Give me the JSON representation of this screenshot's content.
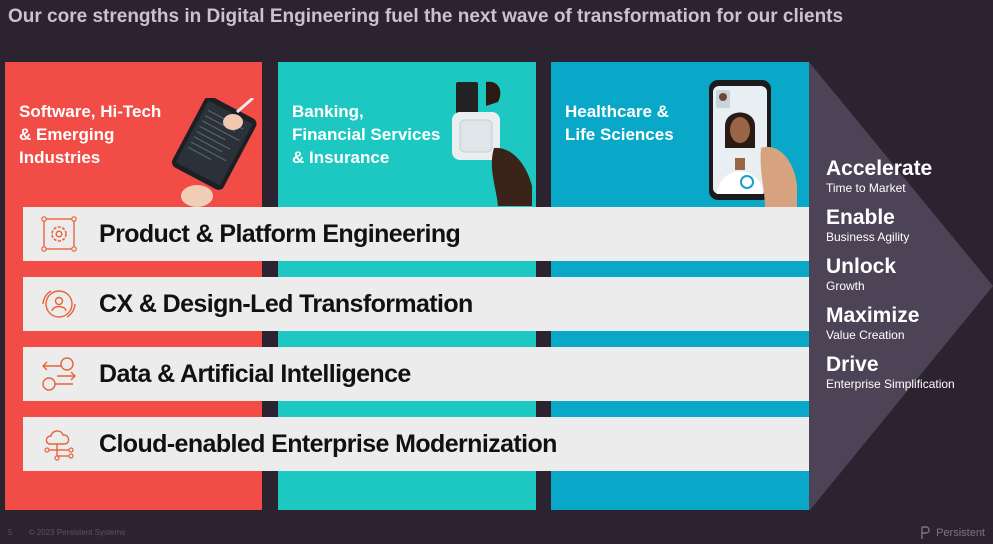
{
  "header": {
    "title": "Our core strengths in Digital Engineering fuel the next wave of transformation for our clients"
  },
  "industries": [
    {
      "lines": [
        "Software, Hi-Tech",
        "& Emerging",
        "Industries"
      ],
      "color": "#f24c46"
    },
    {
      "lines": [
        "Banking,",
        "Financial Services",
        "& Insurance"
      ],
      "color": "#1ec8c2"
    },
    {
      "lines": [
        "Healthcare &",
        "Life Sciences"
      ],
      "color": "#0aa8c8"
    }
  ],
  "capabilities": [
    {
      "label": "Product & Platform Engineering",
      "icon": "gear-icon"
    },
    {
      "label": "CX & Design-Led Transformation",
      "icon": "user-circle-icon"
    },
    {
      "label": "Data & Artificial Intelligence",
      "icon": "data-flow-icon"
    },
    {
      "label": "Cloud-enabled Enterprise Modernization",
      "icon": "cloud-network-icon"
    }
  ],
  "outcomes": [
    {
      "head": "Accelerate",
      "sub": "Time to Market"
    },
    {
      "head": "Enable",
      "sub": "Business Agility"
    },
    {
      "head": "Unlock",
      "sub": "Growth"
    },
    {
      "head": "Maximize",
      "sub": "Value Creation"
    },
    {
      "head": "Drive",
      "sub": "Enterprise Simplification"
    }
  ],
  "footer": {
    "page_number": "5",
    "copyright": "© 2023 Persistent Systems",
    "brand": "Persistent"
  },
  "colors": {
    "background": "#2b2430",
    "accent_orange": "#e8633a",
    "band": "#ececec"
  }
}
